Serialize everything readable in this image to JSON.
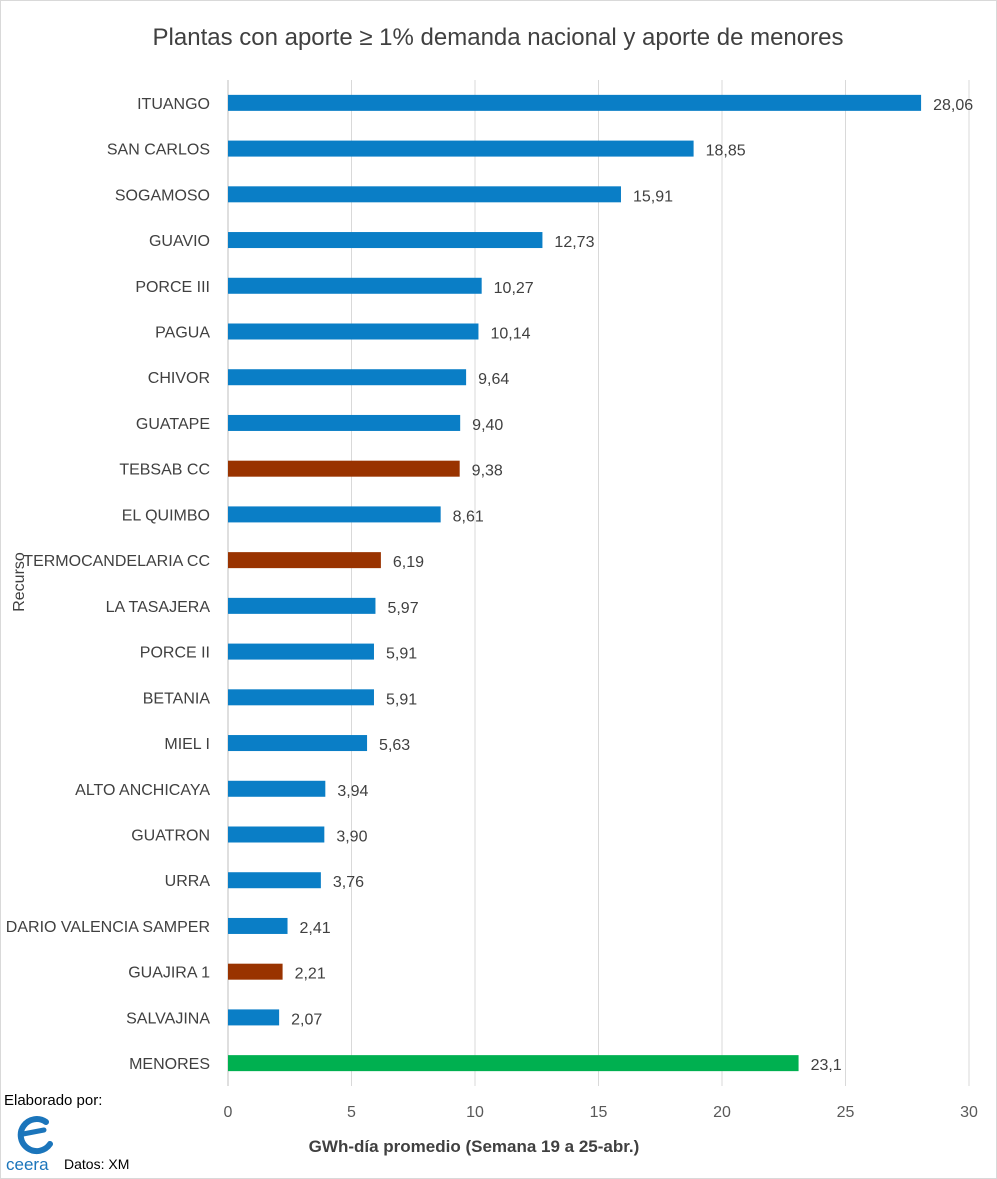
{
  "chart_data": {
    "type": "bar",
    "orientation": "horizontal",
    "title": "Plantas con aporte ≥ 1% demanda nacional y aporte de menores",
    "xlabel": "GWh-día promedio (Semana 19 a 25-abr.)",
    "ylabel": "Recurso",
    "xlim": [
      0,
      30
    ],
    "xticks": [
      "0",
      "5",
      "10",
      "15",
      "20",
      "25",
      "30"
    ],
    "grid": true,
    "categories": [
      "ITUANGO",
      "SAN CARLOS",
      "SOGAMOSO",
      "GUAVIO",
      "PORCE III",
      "PAGUA",
      "CHIVOR",
      "GUATAPE",
      "TEBSAB CC",
      "EL QUIMBO",
      "TERMOCANDELARIA CC",
      "LA TASAJERA",
      "PORCE II",
      "BETANIA",
      "MIEL I",
      "ALTO ANCHICAYA",
      "GUATRON",
      "URRA",
      "DARIO VALENCIA SAMPER",
      "GUAJIRA 1",
      "SALVAJINA",
      "MENORES"
    ],
    "values": [
      28.06,
      18.85,
      15.91,
      12.73,
      10.27,
      10.14,
      9.64,
      9.4,
      9.38,
      8.61,
      6.19,
      5.97,
      5.91,
      5.91,
      5.63,
      3.94,
      3.9,
      3.76,
      2.41,
      2.21,
      2.07,
      23.1
    ],
    "value_labels": [
      "28,06",
      "18,85",
      "15,91",
      "12,73",
      "10,27",
      "10,14",
      "9,64",
      "9,40",
      "9,38",
      "8,61",
      "6,19",
      "5,97",
      "5,91",
      "5,91",
      "5,63",
      "3,94",
      "3,90",
      "3,76",
      "2,41",
      "2,21",
      "2,07",
      "23,1"
    ],
    "bar_colors": [
      "#0a7ec6",
      "#0a7ec6",
      "#0a7ec6",
      "#0a7ec6",
      "#0a7ec6",
      "#0a7ec6",
      "#0a7ec6",
      "#0a7ec6",
      "#993300",
      "#0a7ec6",
      "#993300",
      "#0a7ec6",
      "#0a7ec6",
      "#0a7ec6",
      "#0a7ec6",
      "#0a7ec6",
      "#0a7ec6",
      "#0a7ec6",
      "#0a7ec6",
      "#993300",
      "#0a7ec6",
      "#00b050"
    ]
  },
  "credits": {
    "elaborado": "Elaborado por:",
    "logo_text": "ceera",
    "datos": "Datos: XM"
  },
  "colors": {
    "logo": "#1b75bb",
    "grid": "#d9d9d9",
    "text": "#404040"
  }
}
